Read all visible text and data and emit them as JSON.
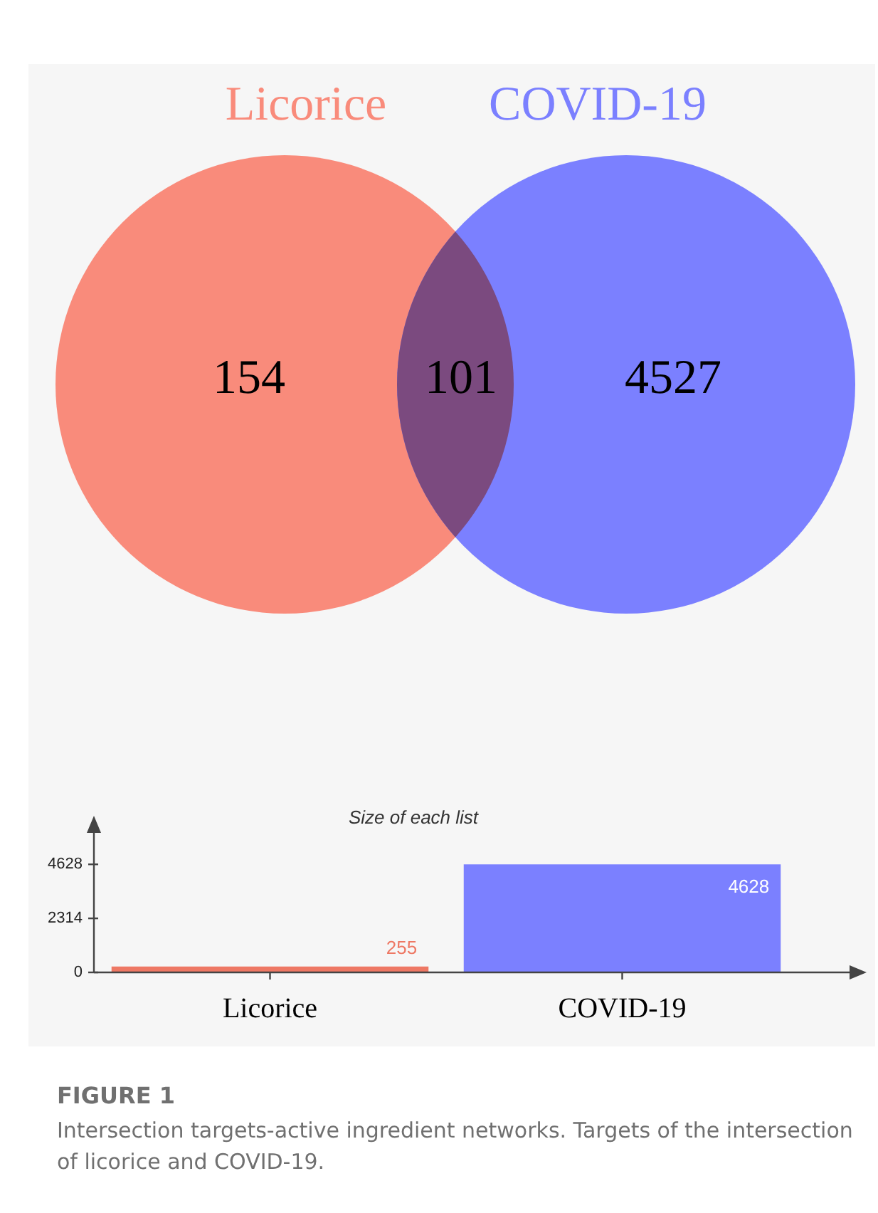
{
  "chart_data": [
    {
      "type": "other",
      "categories": [
        null,
        null,
        null
      ],
      "colors": [
        "#f98b7b",
        "#7b4a7f",
        "#7b80ff"
      ],
      "values": [
        154,
        101,
        4527
      ],
      "data_labels": true,
      "annotations": [
        "Licorice",
        "COVID-19"
      ]
    },
    {
      "type": "bar",
      "title": "Size of each list",
      "categories": [
        "Licorice",
        "COVID-19"
      ],
      "values": [
        255,
        4628
      ],
      "colors": [
        "#ee7864",
        "#7b80ff"
      ],
      "ylim": [
        0,
        6000
      ],
      "yticks": [
        0,
        2314,
        4628
      ],
      "grid": false,
      "data_labels": true,
      "annotations": [
        "FIGURE 1",
        "Intersection targets-active ingredient networks. Targets of the intersection of licorice and COVID-19."
      ]
    }
  ]
}
